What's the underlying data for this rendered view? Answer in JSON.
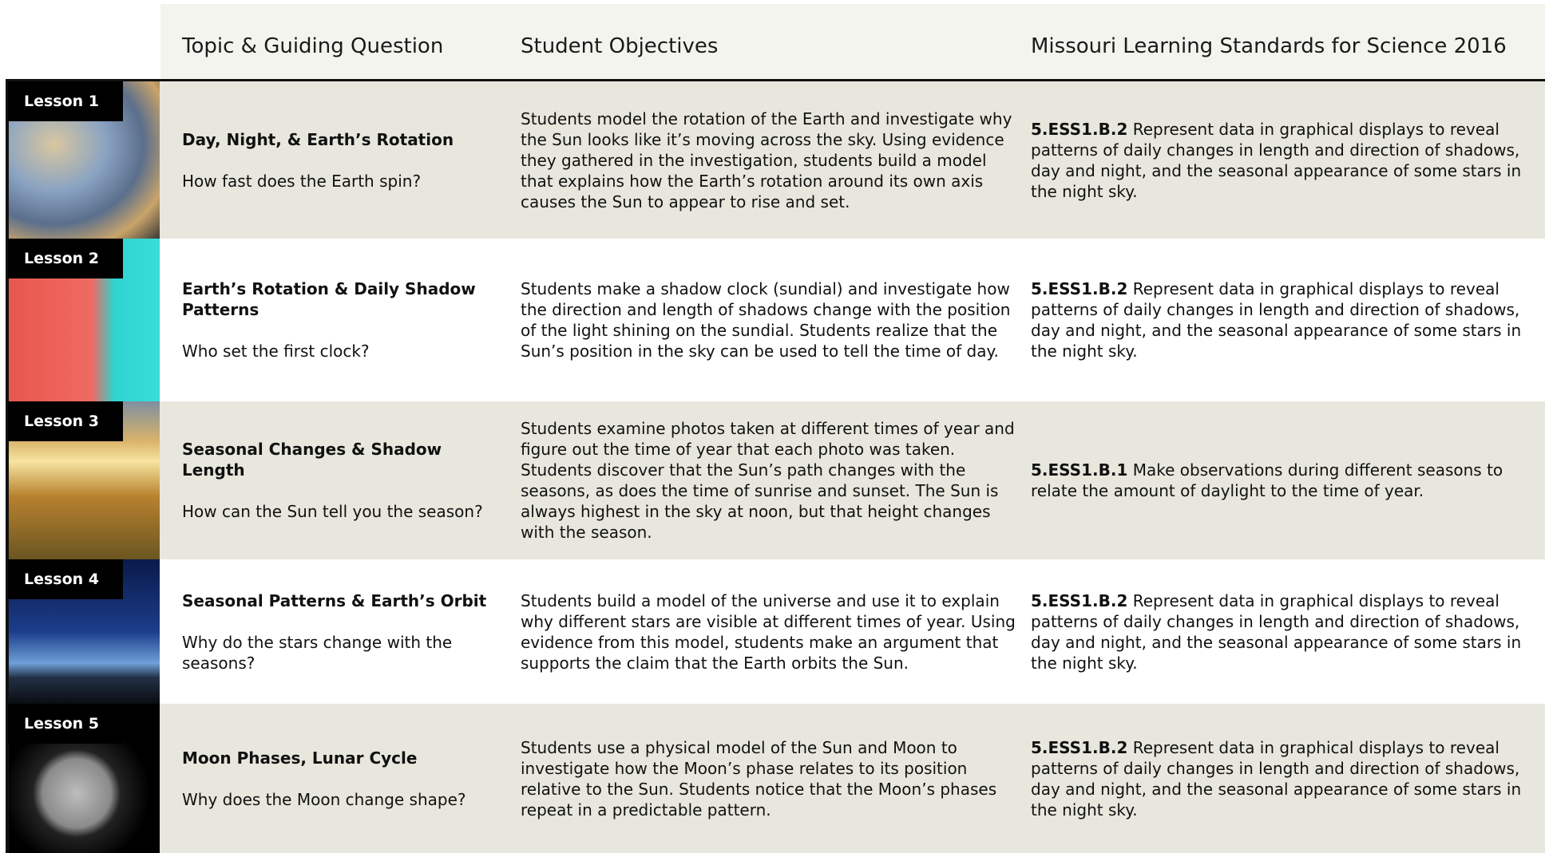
{
  "header": {
    "columns": [
      "Topic & Guiding Question",
      "Student Objectives",
      "Missouri Learning  Standards for Science 2016"
    ]
  },
  "rows": [
    {
      "lesson": "Lesson 1",
      "title": "Day, Night, & Earth’s Rotation",
      "question": "How fast does the Earth spin?",
      "objectives": "Students model the rotation of the Earth and investigate why the Sun looks like it’s moving across the sky. Using evidence they gathered in the investigation, students build a model that explains how the Earth’s rotation around its own axis causes the Sun to appear to rise and set.",
      "standard_code": "5.ESS1.B.2",
      "standard_text": "Represent data in graphical displays to reveal patterns of daily changes in length and direction of shadows, day and night, and the seasonal appearance of some stars in the night sky."
    },
    {
      "lesson": "Lesson 2",
      "title": "Earth’s Rotation & Daily Shadow Patterns",
      "question": "Who set the first clock?",
      "objectives": "Students make a shadow clock (sundial) and investigate how the direction and length of shadows change with the position of the light shining on the sundial. Students realize that the Sun’s position in the sky can be used to tell the time of day.",
      "standard_code": "5.ESS1.B.2",
      "standard_text": "Represent data in graphical displays to reveal patterns of daily changes in length and direction of shadows, day and night, and the seasonal appearance of some stars in the night sky."
    },
    {
      "lesson": "Lesson 3",
      "title": "Seasonal Changes & Shadow Length",
      "question": "How can the Sun tell you the season?",
      "objectives": "Students examine photos taken at different times of year and figure out the time of year that each photo was taken. Students discover that the Sun’s path changes with the seasons, as does the time of sunrise and sunset. The Sun is always highest in the sky at noon, but that height changes with the season.",
      "standard_code": "5.ESS1.B.1",
      "standard_text": "Make observations during different seasons to relate the amount of daylight to the time of year."
    },
    {
      "lesson": "Lesson 4",
      "title": "Seasonal Patterns & Earth’s Orbit",
      "question": "Why do the stars change with the seasons?",
      "objectives": "Students build a model of the universe and use it to explain why different stars are visible at different times of year. Using evidence from this model, students make an argument that supports the claim that the Earth orbits the Sun.",
      "standard_code": "5.ESS1.B.2",
      "standard_text": "Represent data in graphical displays to reveal patterns of daily changes in length and direction of shadows, day and night, and the seasonal appearance of some stars in the night sky."
    },
    {
      "lesson": "Lesson 5",
      "title": "Moon Phases, Lunar Cycle",
      "question": "Why does the Moon change shape?",
      "objectives": "Students use a physical model of the Sun and Moon to investigate how the Moon’s phase relates to its position relative to the Sun. Students notice that the Moon’s phases repeat in a predictable pattern.",
      "standard_code": "5.ESS1.B.2",
      "standard_text": "Represent data in graphical displays to reveal patterns of daily changes in length and direction of shadows, day and night, and the seasonal appearance of some stars in the night sky."
    }
  ]
}
